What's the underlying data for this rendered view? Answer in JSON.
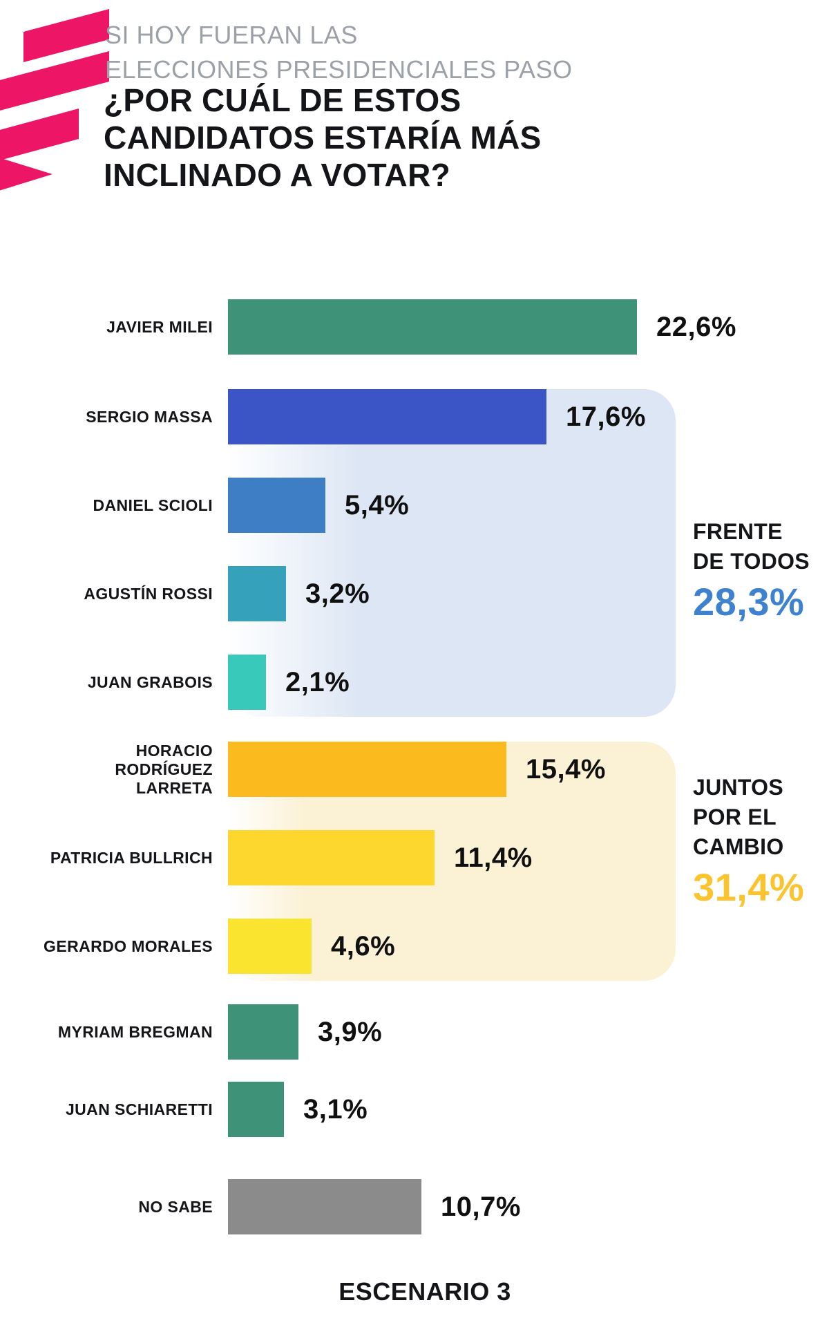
{
  "header": {
    "subtitle_lines": [
      "SI HOY FUERAN LAS",
      "ELECCIONES PRESIDENCIALES PASO"
    ],
    "title_lines": [
      "¿POR CUÁL DE ESTOS",
      "CANDIDATOS ESTARÍA MÁS",
      "INCLINADO A VOTAR?"
    ]
  },
  "logo": {
    "name": "brand-flag-logo",
    "color": "#EC1566"
  },
  "colors": {
    "panel_frente": "#DCE6F4",
    "panel_juntos": "#FBF1D5",
    "total_frente": "#3E82CF",
    "total_juntos": "#FBC32E",
    "subtitle_gray": "#9BA1A7",
    "text_black": "#141518"
  },
  "chart_data": {
    "type": "bar",
    "orientation": "horizontal",
    "title": "¿POR CUÁL DE ESTOS CANDIDATOS ESTARÍA MÁS INCLINADO A VOTAR?",
    "subtitle": "SI HOY FUERAN LAS ELECCIONES PRESIDENCIALES PASO",
    "footer": "ESCENARIO 3",
    "unit": "%",
    "decimal_separator": ",",
    "xlim": [
      0,
      25
    ],
    "grid": false,
    "legend": false,
    "categories": [
      "JAVIER MILEI",
      "SERGIO MASSA",
      "DANIEL SCIOLI",
      "AGUSTÍN ROSSI",
      "JUAN GRABOIS",
      "HORACIO RODRÍGUEZ LARRETA",
      "PATRICIA BULLRICH",
      "GERARDO MORALES",
      "MYRIAM BREGMAN",
      "JUAN SCHIARETTI",
      "NO SABE"
    ],
    "values": [
      22.6,
      17.6,
      5.4,
      3.2,
      2.1,
      15.4,
      11.4,
      4.6,
      3.9,
      3.1,
      10.7
    ],
    "rows": [
      {
        "label": "JAVIER MILEI",
        "label_lines": [
          "JAVIER MILEI"
        ],
        "value": 22.6,
        "value_label": "22,6%",
        "color": "#3E9277",
        "group": null
      },
      {
        "label": "SERGIO MASSA",
        "label_lines": [
          "SERGIO MASSA"
        ],
        "value": 17.6,
        "value_label": "17,6%",
        "color": "#3B55C6",
        "group": "FRENTE DE TODOS"
      },
      {
        "label": "DANIEL SCIOLI",
        "label_lines": [
          "DANIEL SCIOLI"
        ],
        "value": 5.4,
        "value_label": "5,4%",
        "color": "#3E7EC4",
        "group": "FRENTE DE TODOS"
      },
      {
        "label": "AGUSTÍN ROSSI",
        "label_lines": [
          "AGUSTÍN ROSSI"
        ],
        "value": 3.2,
        "value_label": "3,2%",
        "color": "#35A1BB",
        "group": "FRENTE DE TODOS"
      },
      {
        "label": "JUAN GRABOIS",
        "label_lines": [
          "JUAN GRABOIS"
        ],
        "value": 2.1,
        "value_label": "2,1%",
        "color": "#39C9BB",
        "group": "FRENTE DE TODOS"
      },
      {
        "label": "HORACIO RODRÍGUEZ LARRETA",
        "label_lines": [
          "HORACIO",
          "RODRÍGUEZ",
          "LARRETA"
        ],
        "value": 15.4,
        "value_label": "15,4%",
        "color": "#FBBB1E",
        "group": "JUNTOS POR EL CAMBIO"
      },
      {
        "label": "PATRICIA BULLRICH",
        "label_lines": [
          "PATRICIA BULLRICH"
        ],
        "value": 11.4,
        "value_label": "11,4%",
        "color": "#FDD72E",
        "group": "JUNTOS POR EL CAMBIO"
      },
      {
        "label": "GERARDO MORALES",
        "label_lines": [
          "GERARDO MORALES"
        ],
        "value": 4.6,
        "value_label": "4,6%",
        "color": "#FAE430",
        "group": "JUNTOS POR EL CAMBIO"
      },
      {
        "label": "MYRIAM BREGMAN",
        "label_lines": [
          "MYRIAM BREGMAN"
        ],
        "value": 3.9,
        "value_label": "3,9%",
        "color": "#3E9277",
        "group": null
      },
      {
        "label": "JUAN SCHIARETTI",
        "label_lines": [
          "JUAN SCHIARETTI"
        ],
        "value": 3.1,
        "value_label": "3,1%",
        "color": "#3E9277",
        "group": null
      },
      {
        "label": "NO SABE",
        "label_lines": [
          "NO SABE"
        ],
        "value": 10.7,
        "value_label": "10,7%",
        "color": "#8B8B8B",
        "group": null
      }
    ],
    "groups": [
      {
        "name": "FRENTE DE TODOS",
        "label_lines": [
          "FRENTE",
          "DE TODOS"
        ],
        "total": 28.3,
        "total_label": "28,3%",
        "accent_color": "#3E82CF",
        "panel_color": "#DCE6F4"
      },
      {
        "name": "JUNTOS POR EL CAMBIO",
        "label_lines": [
          "JUNTOS",
          "POR EL",
          "CAMBIO"
        ],
        "total": 31.4,
        "total_label": "31,4%",
        "accent_color": "#FBC32E",
        "panel_color": "#FBF1D5"
      }
    ]
  }
}
